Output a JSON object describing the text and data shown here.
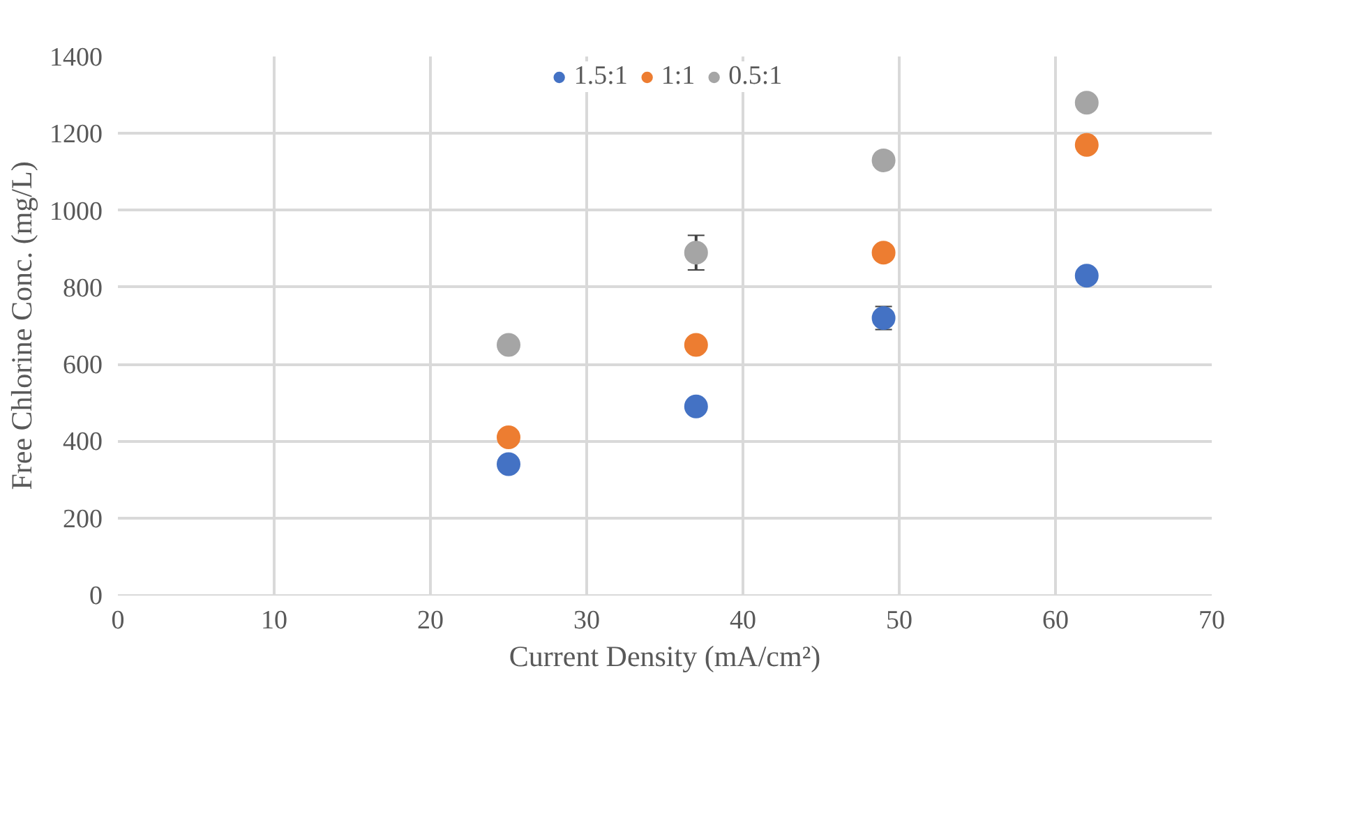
{
  "chart_data": {
    "type": "scatter",
    "xlabel": "Current Density (mA/cm²)",
    "ylabel": "Free Chlorine Conc. (mg/L)",
    "xlim": [
      0,
      70
    ],
    "xticks": [
      0,
      10,
      20,
      30,
      40,
      50,
      60,
      70
    ],
    "ylim": [
      0,
      1400
    ],
    "yticks": [
      0,
      200,
      400,
      600,
      800,
      1000,
      1200,
      1400
    ],
    "grid": true,
    "legend": "top",
    "marker": "circle",
    "series": [
      {
        "name": "1.5:1",
        "color": "#4472c4",
        "x": [
          25,
          37,
          49,
          62
        ],
        "values": [
          340,
          490,
          720,
          830
        ],
        "errors": [
          null,
          null,
          30,
          null
        ]
      },
      {
        "name": "1:1",
        "color": "#ed7d31",
        "x": [
          25,
          37,
          49,
          62
        ],
        "values": [
          410,
          650,
          890,
          1170
        ],
        "errors": [
          null,
          null,
          null,
          null
        ]
      },
      {
        "name": "0.5:1",
        "color": "#a5a5a5",
        "x": [
          25,
          37,
          49,
          62
        ],
        "values": [
          650,
          890,
          1130,
          1280
        ],
        "errors": [
          null,
          45,
          null,
          null
        ]
      }
    ]
  }
}
